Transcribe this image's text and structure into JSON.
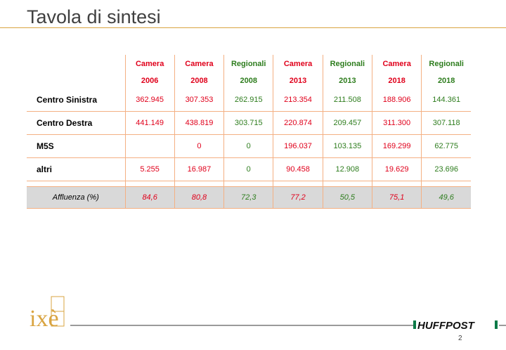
{
  "slide": {
    "title": "Tavola di sintesi",
    "page_number": "2"
  },
  "table": {
    "columns": [
      {
        "type": "Camera",
        "year": "2006",
        "color": "red"
      },
      {
        "type": "Camera",
        "year": "2008",
        "color": "red"
      },
      {
        "type": "Regionali",
        "year": "2008",
        "color": "green"
      },
      {
        "type": "Camera",
        "year": "2013",
        "color": "red"
      },
      {
        "type": "Regionali",
        "year": "2013",
        "color": "green"
      },
      {
        "type": "Camera",
        "year": "2018",
        "color": "red"
      },
      {
        "type": "Regionali",
        "year": "2018",
        "color": "green"
      }
    ],
    "rows": [
      {
        "label": "Centro Sinistra",
        "values": [
          "362.945",
          "307.353",
          "262.915",
          "213.354",
          "211.508",
          "188.906",
          "144.361"
        ]
      },
      {
        "label": "Centro Destra",
        "values": [
          "441.149",
          "438.819",
          "303.715",
          "220.874",
          "209.457",
          "311.300",
          "307.118"
        ]
      },
      {
        "label": "M5S",
        "values": [
          "",
          "0",
          "0",
          "196.037",
          "103.135",
          "169.299",
          "62.775"
        ]
      },
      {
        "label": "altri",
        "values": [
          "5.255",
          "16.987",
          "0",
          "90.458",
          "12.908",
          "19.629",
          "23.696"
        ]
      }
    ],
    "turnout": {
      "label": "Affluenza (%)",
      "values": [
        "84,6",
        "80,8",
        "72,3",
        "77,2",
        "50,5",
        "75,1",
        "49,6"
      ]
    }
  },
  "colors": {
    "red": "#e0001b",
    "green": "#2e7d1e",
    "title_rule": "#d9a441",
    "grid_line": "#f4b083",
    "turnout_bg": "#d9d9d9"
  },
  "logos": {
    "left": "ixè",
    "right": "HUFFPOST"
  }
}
